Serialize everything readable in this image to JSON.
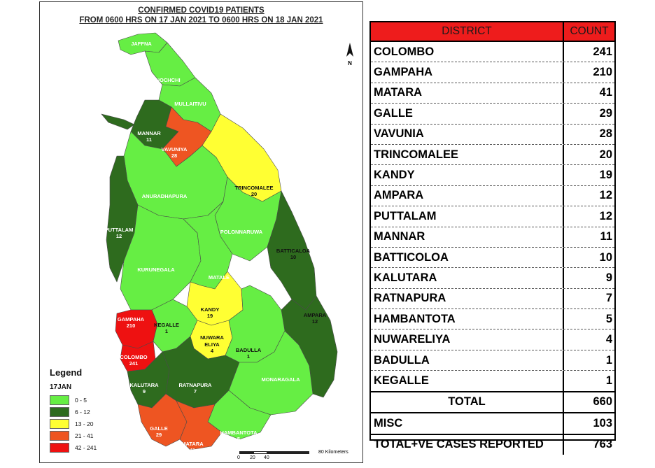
{
  "map": {
    "title_line1": "CONFIRMED COVID19 PATIENTS",
    "title_line2": "FROM 0600 HRS ON 17 JAN 2021 TO 0600 HRS ON 18 JAN 2021",
    "legend": {
      "title": "Legend",
      "subtitle": "17JAN",
      "items": [
        {
          "label": "0 - 5",
          "color": "#66ee44"
        },
        {
          "label": "6 - 12",
          "color": "#2e6b1e"
        },
        {
          "label": "13 - 20",
          "color": "#ffff33"
        },
        {
          "label": "21 - 41",
          "color": "#ee5522"
        },
        {
          "label": "42 - 241",
          "color": "#ee1111"
        }
      ]
    },
    "scale": {
      "ticks": [
        "0",
        "20",
        "40",
        "80 Kilometers"
      ]
    },
    "north_label": "N",
    "district_labels": [
      {
        "name": "JAFFNA",
        "value": ""
      },
      {
        "name": "KILINOCHCHI",
        "value": ""
      },
      {
        "name": "MULLAITIVU",
        "value": ""
      },
      {
        "name": "MANNAR",
        "value": "11"
      },
      {
        "name": "VAVUNIYA",
        "value": "28"
      },
      {
        "name": "TRINCOMALEE",
        "value": "20"
      },
      {
        "name": "ANURADHAPURA",
        "value": ""
      },
      {
        "name": "PUTTALAM",
        "value": "12"
      },
      {
        "name": "POLONNARUWA",
        "value": ""
      },
      {
        "name": "BATTICALOA",
        "value": "10"
      },
      {
        "name": "KURUNEGALA",
        "value": ""
      },
      {
        "name": "MATALE",
        "value": ""
      },
      {
        "name": "KANDY",
        "value": "19"
      },
      {
        "name": "GAMPAHA",
        "value": "210"
      },
      {
        "name": "KEGALLE",
        "value": "1"
      },
      {
        "name": "AMPARA",
        "value": "12"
      },
      {
        "name": "NUWARA",
        "value": ""
      },
      {
        "name": "ELIYA",
        "value": "4"
      },
      {
        "name": "BADULLA",
        "value": "1"
      },
      {
        "name": "COLOMBO",
        "value": "241"
      },
      {
        "name": "KALUTARA",
        "value": "9"
      },
      {
        "name": "RATNAPURA",
        "value": "7"
      },
      {
        "name": "MONARAGALA",
        "value": ""
      },
      {
        "name": "GALLE",
        "value": "29"
      },
      {
        "name": "HAMBANTOTA",
        "value": "5"
      },
      {
        "name": "MATARA",
        "value": "41"
      }
    ]
  },
  "table": {
    "header": {
      "district": "DISTRICT",
      "count": "COUNT"
    },
    "rows": [
      {
        "district": "COLOMBO",
        "count": "241"
      },
      {
        "district": "GAMPAHA",
        "count": "210"
      },
      {
        "district": "MATARA",
        "count": "41"
      },
      {
        "district": "GALLE",
        "count": "29"
      },
      {
        "district": "VAVUNIA",
        "count": "28"
      },
      {
        "district": "TRINCOMALEE",
        "count": "20"
      },
      {
        "district": "KANDY",
        "count": "19"
      },
      {
        "district": "AMPARA",
        "count": "12"
      },
      {
        "district": "PUTTALAM",
        "count": "12"
      },
      {
        "district": "MANNAR",
        "count": "11"
      },
      {
        "district": "BATTICOLOA",
        "count": "10"
      },
      {
        "district": "KALUTARA",
        "count": "9"
      },
      {
        "district": "RATNAPURA",
        "count": "7"
      },
      {
        "district": "HAMBANTOTA",
        "count": "5"
      },
      {
        "district": "NUWARELIYA",
        "count": "4"
      },
      {
        "district": "BADULLA",
        "count": "1"
      },
      {
        "district": "KEGALLE",
        "count": "1"
      }
    ],
    "total": {
      "label": "TOTAL",
      "count": "660"
    },
    "misc": {
      "label": "MISC",
      "count": "103"
    },
    "grand_total": {
      "label": "TOTAL+VE CASES REPORTED",
      "count": "763"
    }
  }
}
